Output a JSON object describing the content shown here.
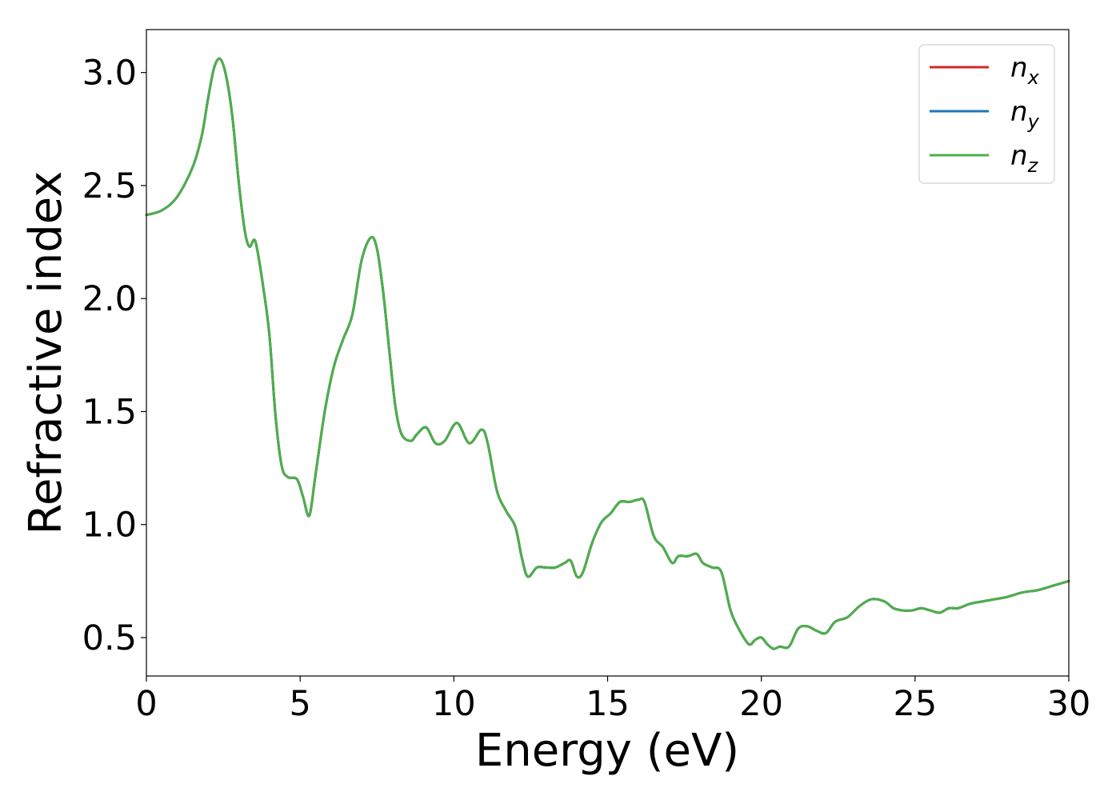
{
  "chart_data": {
    "type": "line",
    "title": "",
    "xlabel": "Energy (eV)",
    "ylabel": "Refractive index",
    "xlim": [
      0,
      30
    ],
    "ylim": [
      0.33,
      3.19
    ],
    "xticks": [
      0,
      5,
      10,
      15,
      20,
      25,
      30
    ],
    "xtick_labels": [
      "0",
      "5",
      "10",
      "15",
      "20",
      "25",
      "30"
    ],
    "yticks": [
      0.5,
      1.0,
      1.5,
      2.0,
      2.5,
      3.0
    ],
    "ytick_labels": [
      "0.5",
      "1.0",
      "1.5",
      "2.0",
      "2.5",
      "3.0"
    ],
    "grid": false,
    "legend_position": "top-right",
    "x": [
      0,
      0.5,
      1.0,
      1.5,
      1.8,
      2.0,
      2.2,
      2.4,
      2.6,
      2.8,
      3.0,
      3.2,
      3.35,
      3.5,
      3.6,
      3.8,
      4.0,
      4.2,
      4.4,
      4.6,
      4.9,
      5.1,
      5.3,
      5.5,
      5.8,
      6.1,
      6.4,
      6.7,
      7.0,
      7.3,
      7.5,
      7.7,
      7.9,
      8.1,
      8.3,
      8.6,
      8.8,
      9.1,
      9.4,
      9.7,
      10.1,
      10.5,
      10.9,
      11.1,
      11.4,
      11.7,
      12.0,
      12.2,
      12.4,
      12.7,
      13.0,
      13.3,
      13.6,
      13.8,
      14.0,
      14.2,
      14.5,
      14.8,
      15.1,
      15.4,
      15.7,
      16.0,
      16.2,
      16.5,
      16.8,
      17.1,
      17.3,
      17.6,
      17.9,
      18.1,
      18.4,
      18.7,
      19.0,
      19.3,
      19.6,
      19.8,
      20.0,
      20.2,
      20.4,
      20.6,
      20.9,
      21.2,
      21.5,
      21.8,
      22.1,
      22.4,
      22.8,
      23.2,
      23.6,
      24.0,
      24.3,
      24.6,
      24.9,
      25.2,
      25.5,
      25.8,
      26.1,
      26.4,
      26.8,
      27.2,
      27.6,
      28.0,
      28.5,
      29.0,
      29.5,
      30.0
    ],
    "series": [
      {
        "name": "n_x",
        "color": "#d62728",
        "y": [
          2.37,
          2.39,
          2.45,
          2.58,
          2.72,
          2.88,
          3.02,
          3.06,
          2.98,
          2.8,
          2.52,
          2.3,
          2.23,
          2.26,
          2.22,
          2.05,
          1.84,
          1.48,
          1.26,
          1.21,
          1.2,
          1.12,
          1.04,
          1.22,
          1.5,
          1.7,
          1.82,
          1.93,
          2.17,
          2.27,
          2.22,
          2.03,
          1.77,
          1.52,
          1.4,
          1.37,
          1.4,
          1.43,
          1.36,
          1.37,
          1.45,
          1.36,
          1.42,
          1.36,
          1.15,
          1.06,
          0.99,
          0.86,
          0.77,
          0.81,
          0.81,
          0.81,
          0.83,
          0.84,
          0.77,
          0.79,
          0.92,
          1.01,
          1.05,
          1.1,
          1.1,
          1.11,
          1.1,
          0.95,
          0.9,
          0.83,
          0.86,
          0.86,
          0.87,
          0.83,
          0.81,
          0.79,
          0.62,
          0.53,
          0.47,
          0.49,
          0.5,
          0.47,
          0.45,
          0.46,
          0.46,
          0.54,
          0.55,
          0.53,
          0.52,
          0.57,
          0.59,
          0.64,
          0.67,
          0.66,
          0.63,
          0.62,
          0.62,
          0.63,
          0.62,
          0.61,
          0.63,
          0.63,
          0.65,
          0.66,
          0.67,
          0.68,
          0.7,
          0.71,
          0.73,
          0.75
        ]
      },
      {
        "name": "n_y",
        "color": "#1f77b4",
        "y": [
          2.37,
          2.39,
          2.45,
          2.58,
          2.72,
          2.88,
          3.02,
          3.06,
          2.98,
          2.8,
          2.52,
          2.3,
          2.23,
          2.26,
          2.22,
          2.05,
          1.84,
          1.48,
          1.26,
          1.21,
          1.2,
          1.12,
          1.04,
          1.22,
          1.5,
          1.7,
          1.82,
          1.93,
          2.17,
          2.27,
          2.22,
          2.03,
          1.77,
          1.52,
          1.4,
          1.37,
          1.4,
          1.43,
          1.36,
          1.37,
          1.45,
          1.36,
          1.42,
          1.36,
          1.15,
          1.06,
          0.99,
          0.86,
          0.77,
          0.81,
          0.81,
          0.81,
          0.83,
          0.84,
          0.77,
          0.79,
          0.92,
          1.01,
          1.05,
          1.1,
          1.1,
          1.11,
          1.1,
          0.95,
          0.9,
          0.83,
          0.86,
          0.86,
          0.87,
          0.83,
          0.81,
          0.79,
          0.62,
          0.53,
          0.47,
          0.49,
          0.5,
          0.47,
          0.45,
          0.46,
          0.46,
          0.54,
          0.55,
          0.53,
          0.52,
          0.57,
          0.59,
          0.64,
          0.67,
          0.66,
          0.63,
          0.62,
          0.62,
          0.63,
          0.62,
          0.61,
          0.63,
          0.63,
          0.65,
          0.66,
          0.67,
          0.68,
          0.7,
          0.71,
          0.73,
          0.75
        ]
      },
      {
        "name": "n_z",
        "color": "#4daf4a",
        "y": [
          2.37,
          2.39,
          2.45,
          2.58,
          2.72,
          2.88,
          3.02,
          3.06,
          2.98,
          2.8,
          2.52,
          2.3,
          2.23,
          2.26,
          2.22,
          2.05,
          1.84,
          1.48,
          1.26,
          1.21,
          1.2,
          1.12,
          1.04,
          1.22,
          1.5,
          1.7,
          1.82,
          1.93,
          2.17,
          2.27,
          2.22,
          2.03,
          1.77,
          1.52,
          1.4,
          1.37,
          1.4,
          1.43,
          1.36,
          1.37,
          1.45,
          1.36,
          1.42,
          1.36,
          1.15,
          1.06,
          0.99,
          0.86,
          0.77,
          0.81,
          0.81,
          0.81,
          0.83,
          0.84,
          0.77,
          0.79,
          0.92,
          1.01,
          1.05,
          1.1,
          1.1,
          1.11,
          1.1,
          0.95,
          0.9,
          0.83,
          0.86,
          0.86,
          0.87,
          0.83,
          0.81,
          0.79,
          0.62,
          0.53,
          0.47,
          0.49,
          0.5,
          0.47,
          0.45,
          0.46,
          0.46,
          0.54,
          0.55,
          0.53,
          0.52,
          0.57,
          0.59,
          0.64,
          0.67,
          0.66,
          0.63,
          0.62,
          0.62,
          0.63,
          0.62,
          0.61,
          0.63,
          0.63,
          0.65,
          0.66,
          0.67,
          0.68,
          0.7,
          0.71,
          0.73,
          0.75
        ]
      }
    ],
    "legend": [
      {
        "symbol": "n",
        "subscript": "x",
        "color": "#d62728"
      },
      {
        "symbol": "n",
        "subscript": "y",
        "color": "#1f77b4"
      },
      {
        "symbol": "n",
        "subscript": "z",
        "color": "#4daf4a"
      }
    ]
  }
}
